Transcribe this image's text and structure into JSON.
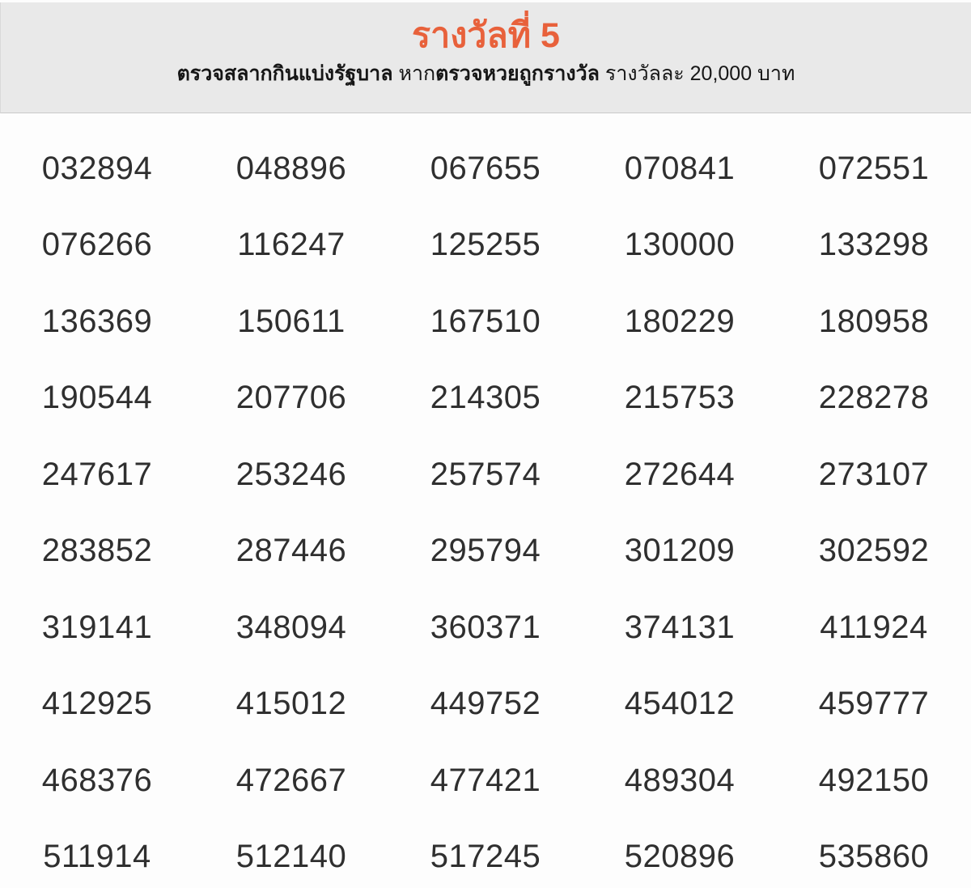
{
  "page": {
    "language": "th",
    "background_color": "#fdfdfd"
  },
  "colors": {
    "accent_orange": "#e8613b",
    "header_background": "#e9e9e9",
    "header_border_bottom": "#c9c9c9",
    "number_text": "#2f2f2f",
    "subtitle_text": "#161616"
  },
  "header": {
    "title": "รางวัลที่ 5",
    "subtitle_full_text": "ตรวจสลากกินแบ่งรัฐบาล หากตรวจหวยถูกรางวัล รางวัลละ 20,000 บาท",
    "subtitle_parts": [
      {
        "text": "ตรวจสลากกินแบ่งรัฐบาล",
        "bold": true
      },
      {
        "text": " หาก",
        "bold": false
      },
      {
        "text": "ตรวจหวยถูกรางวัล",
        "bold": true
      },
      {
        "text": " รางวัลละ 20,000 บาท",
        "bold": false
      }
    ],
    "prize_amount": "20,000",
    "prize_currency_label": "บาท"
  },
  "results": {
    "columns": 5,
    "rows": [
      [
        "032894",
        "048896",
        "067655",
        "070841",
        "072551"
      ],
      [
        "076266",
        "116247",
        "125255",
        "130000",
        "133298"
      ],
      [
        "136369",
        "150611",
        "167510",
        "180229",
        "180958"
      ],
      [
        "190544",
        "207706",
        "214305",
        "215753",
        "228278"
      ],
      [
        "247617",
        "253246",
        "257574",
        "272644",
        "273107"
      ],
      [
        "283852",
        "287446",
        "295794",
        "301209",
        "302592"
      ],
      [
        "319141",
        "348094",
        "360371",
        "374131",
        "411924"
      ],
      [
        "412925",
        "415012",
        "449752",
        "454012",
        "459777"
      ],
      [
        "468376",
        "472667",
        "477421",
        "489304",
        "492150"
      ],
      [
        "511914",
        "512140",
        "517245",
        "520896",
        "535860"
      ]
    ]
  }
}
